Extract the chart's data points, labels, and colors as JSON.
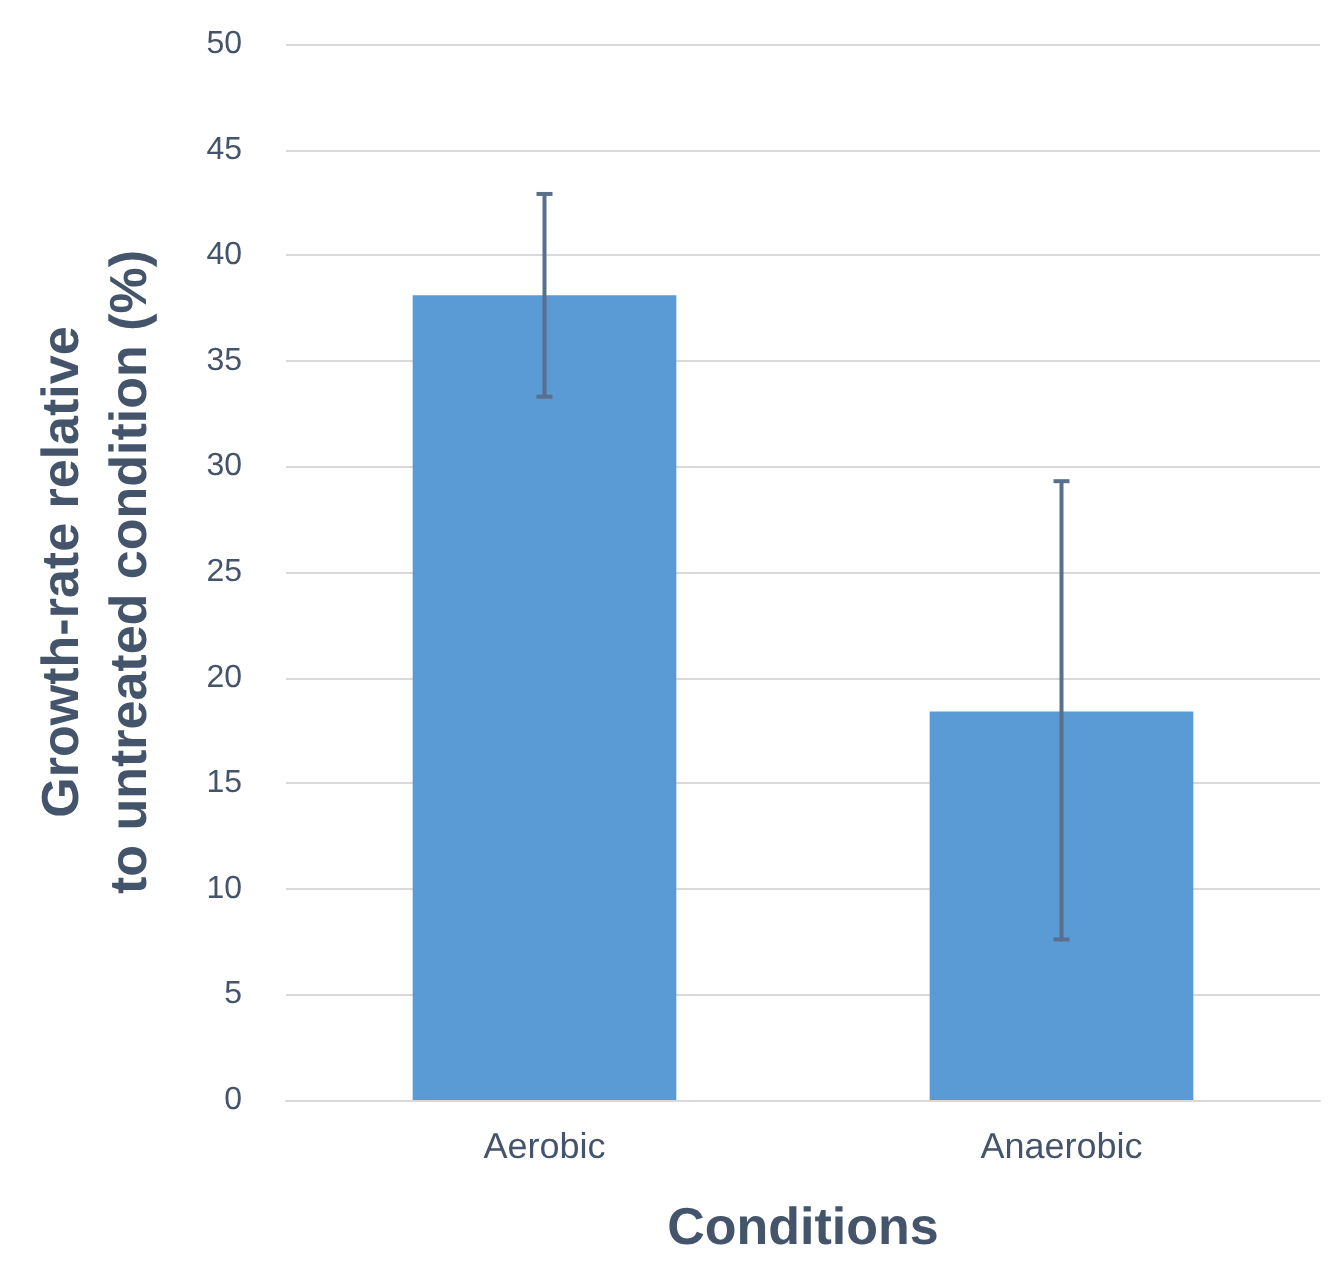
{
  "chart_data": {
    "type": "bar",
    "xlabel": "Conditions",
    "ylabel": "Growth-rate relative\nto untreated condition (%)",
    "categories": [
      "Aerobic",
      "Anaerobic"
    ],
    "values": [
      38.1,
      18.4
    ],
    "errors": [
      [
        33.3,
        42.9
      ],
      [
        7.6,
        29.3
      ]
    ],
    "color": "#5b9bd5",
    "ylim": [
      0,
      50
    ],
    "yticks": [
      0,
      5,
      10,
      15,
      20,
      25,
      30,
      35,
      40,
      45,
      50
    ],
    "grid": "y"
  }
}
